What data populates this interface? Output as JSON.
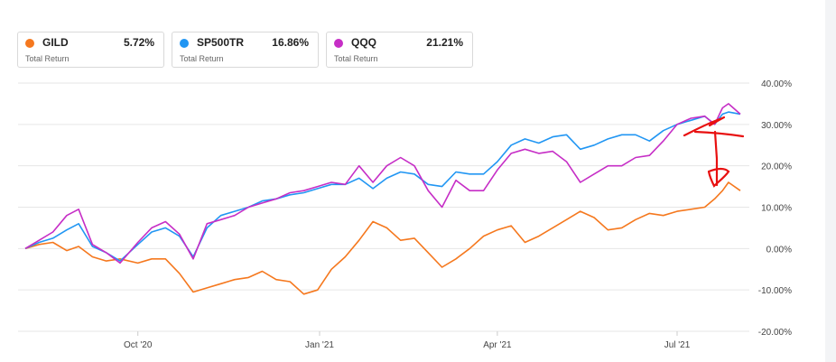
{
  "legend": [
    {
      "ticker": "GILD",
      "value": "5.72%",
      "sub": "Total Return",
      "color": "#f5781e"
    },
    {
      "ticker": "SP500TR",
      "value": "16.86%",
      "sub": "Total Return",
      "color": "#2196f3"
    },
    {
      "ticker": "QQQ",
      "value": "21.21%",
      "sub": "Total Return",
      "color": "#c62ec6"
    }
  ],
  "chart_data": {
    "type": "line",
    "y_ticks": [
      "40.00%",
      "30.00%",
      "20.00%",
      "10.00%",
      "0.00%",
      "-10.00%",
      "-20.00%"
    ],
    "y_tick_values": [
      40,
      30,
      20,
      10,
      0,
      -10,
      -20
    ],
    "ylim": [
      -20,
      40
    ],
    "x_ticks": [
      "Oct '20",
      "Jan '21",
      "Apr '21",
      "Jul '21"
    ],
    "x_tick_dates": [
      "2020-10-01",
      "2021-01-01",
      "2021-04-01",
      "2021-07-01"
    ],
    "xlim": [
      "2020-08-05",
      "2021-08-02"
    ],
    "grid": true,
    "series": [
      {
        "name": "GILD",
        "color": "#f5781e",
        "points": [
          [
            "2020-08-05",
            0
          ],
          [
            "2020-08-12",
            1
          ],
          [
            "2020-08-19",
            1.5
          ],
          [
            "2020-08-26",
            -0.5
          ],
          [
            "2020-09-01",
            0.5
          ],
          [
            "2020-09-08",
            -2
          ],
          [
            "2020-09-15",
            -3
          ],
          [
            "2020-09-22",
            -2.5
          ],
          [
            "2020-10-01",
            -3.5
          ],
          [
            "2020-10-08",
            -2.5
          ],
          [
            "2020-10-15",
            -2.5
          ],
          [
            "2020-10-22",
            -6
          ],
          [
            "2020-10-29",
            -10.5
          ],
          [
            "2020-11-05",
            -9.5
          ],
          [
            "2020-11-12",
            -8.5
          ],
          [
            "2020-11-19",
            -7.5
          ],
          [
            "2020-11-26",
            -7
          ],
          [
            "2020-12-03",
            -5.5
          ],
          [
            "2020-12-10",
            -7.5
          ],
          [
            "2020-12-17",
            -8
          ],
          [
            "2020-12-24",
            -11
          ],
          [
            "2020-12-31",
            -10
          ],
          [
            "2021-01-07",
            -5
          ],
          [
            "2021-01-14",
            -2
          ],
          [
            "2021-01-21",
            2
          ],
          [
            "2021-01-28",
            6.5
          ],
          [
            "2021-02-04",
            5
          ],
          [
            "2021-02-11",
            2
          ],
          [
            "2021-02-18",
            2.5
          ],
          [
            "2021-02-25",
            -1
          ],
          [
            "2021-03-04",
            -4.5
          ],
          [
            "2021-03-11",
            -2.5
          ],
          [
            "2021-03-18",
            0
          ],
          [
            "2021-03-25",
            3
          ],
          [
            "2021-04-01",
            4.5
          ],
          [
            "2021-04-08",
            5.5
          ],
          [
            "2021-04-15",
            1.5
          ],
          [
            "2021-04-22",
            3
          ],
          [
            "2021-04-29",
            5
          ],
          [
            "2021-05-06",
            7
          ],
          [
            "2021-05-13",
            9
          ],
          [
            "2021-05-20",
            7.5
          ],
          [
            "2021-05-27",
            4.5
          ],
          [
            "2021-06-03",
            5
          ],
          [
            "2021-06-10",
            7
          ],
          [
            "2021-06-17",
            8.5
          ],
          [
            "2021-06-24",
            8
          ],
          [
            "2021-07-01",
            9
          ],
          [
            "2021-07-08",
            9.5
          ],
          [
            "2021-07-15",
            10
          ],
          [
            "2021-07-20",
            12
          ],
          [
            "2021-07-24",
            14
          ],
          [
            "2021-07-27",
            16
          ],
          [
            "2021-08-02",
            14
          ]
        ]
      },
      {
        "name": "SP500TR",
        "color": "#2196f3",
        "points": [
          [
            "2020-08-05",
            0
          ],
          [
            "2020-08-12",
            1.5
          ],
          [
            "2020-08-19",
            2.5
          ],
          [
            "2020-08-26",
            4.5
          ],
          [
            "2020-09-01",
            6
          ],
          [
            "2020-09-08",
            0.5
          ],
          [
            "2020-09-15",
            -1
          ],
          [
            "2020-09-22",
            -3
          ],
          [
            "2020-10-01",
            1
          ],
          [
            "2020-10-08",
            4
          ],
          [
            "2020-10-15",
            5
          ],
          [
            "2020-10-22",
            3
          ],
          [
            "2020-10-29",
            -2
          ],
          [
            "2020-11-05",
            5
          ],
          [
            "2020-11-12",
            8
          ],
          [
            "2020-11-19",
            9
          ],
          [
            "2020-11-26",
            10
          ],
          [
            "2020-12-03",
            11.5
          ],
          [
            "2020-12-10",
            12
          ],
          [
            "2020-12-17",
            13
          ],
          [
            "2020-12-24",
            13.5
          ],
          [
            "2020-12-31",
            14.5
          ],
          [
            "2021-01-07",
            15.5
          ],
          [
            "2021-01-14",
            15.5
          ],
          [
            "2021-01-21",
            17
          ],
          [
            "2021-01-28",
            14.5
          ],
          [
            "2021-02-04",
            17
          ],
          [
            "2021-02-11",
            18.5
          ],
          [
            "2021-02-18",
            18
          ],
          [
            "2021-02-25",
            15.5
          ],
          [
            "2021-03-04",
            15
          ],
          [
            "2021-03-11",
            18.5
          ],
          [
            "2021-03-18",
            18
          ],
          [
            "2021-03-25",
            18
          ],
          [
            "2021-04-01",
            21
          ],
          [
            "2021-04-08",
            25
          ],
          [
            "2021-04-15",
            26.5
          ],
          [
            "2021-04-22",
            25.5
          ],
          [
            "2021-04-29",
            27
          ],
          [
            "2021-05-06",
            27.5
          ],
          [
            "2021-05-13",
            24
          ],
          [
            "2021-05-20",
            25
          ],
          [
            "2021-05-27",
            26.5
          ],
          [
            "2021-06-03",
            27.5
          ],
          [
            "2021-06-10",
            27.5
          ],
          [
            "2021-06-17",
            26
          ],
          [
            "2021-06-24",
            28.5
          ],
          [
            "2021-07-01",
            30
          ],
          [
            "2021-07-08",
            31
          ],
          [
            "2021-07-15",
            32
          ],
          [
            "2021-07-20",
            30
          ],
          [
            "2021-07-24",
            32.5
          ],
          [
            "2021-07-27",
            33
          ],
          [
            "2021-08-02",
            32.5
          ]
        ]
      },
      {
        "name": "QQQ",
        "color": "#c62ec6",
        "points": [
          [
            "2020-08-05",
            0
          ],
          [
            "2020-08-12",
            2
          ],
          [
            "2020-08-19",
            4
          ],
          [
            "2020-08-26",
            8
          ],
          [
            "2020-09-01",
            9.5
          ],
          [
            "2020-09-08",
            1
          ],
          [
            "2020-09-15",
            -1
          ],
          [
            "2020-09-22",
            -3.5
          ],
          [
            "2020-10-01",
            1.5
          ],
          [
            "2020-10-08",
            5
          ],
          [
            "2020-10-15",
            6.5
          ],
          [
            "2020-10-22",
            3.5
          ],
          [
            "2020-10-29",
            -2.5
          ],
          [
            "2020-11-05",
            6
          ],
          [
            "2020-11-12",
            7
          ],
          [
            "2020-11-19",
            8
          ],
          [
            "2020-11-26",
            10
          ],
          [
            "2020-12-03",
            11
          ],
          [
            "2020-12-10",
            12
          ],
          [
            "2020-12-17",
            13.5
          ],
          [
            "2020-12-24",
            14
          ],
          [
            "2020-12-31",
            15
          ],
          [
            "2021-01-07",
            16
          ],
          [
            "2021-01-14",
            15.5
          ],
          [
            "2021-01-21",
            20
          ],
          [
            "2021-01-28",
            16
          ],
          [
            "2021-02-04",
            20
          ],
          [
            "2021-02-11",
            22
          ],
          [
            "2021-02-18",
            20
          ],
          [
            "2021-02-25",
            14
          ],
          [
            "2021-03-04",
            10
          ],
          [
            "2021-03-11",
            16.5
          ],
          [
            "2021-03-18",
            14
          ],
          [
            "2021-03-25",
            14
          ],
          [
            "2021-04-01",
            19
          ],
          [
            "2021-04-08",
            23
          ],
          [
            "2021-04-15",
            24
          ],
          [
            "2021-04-22",
            23
          ],
          [
            "2021-04-29",
            23.5
          ],
          [
            "2021-05-06",
            21
          ],
          [
            "2021-05-13",
            16
          ],
          [
            "2021-05-20",
            18
          ],
          [
            "2021-05-27",
            20
          ],
          [
            "2021-06-03",
            20
          ],
          [
            "2021-06-10",
            22
          ],
          [
            "2021-06-17",
            22.5
          ],
          [
            "2021-06-24",
            26
          ],
          [
            "2021-07-01",
            30
          ],
          [
            "2021-07-08",
            31.5
          ],
          [
            "2021-07-15",
            32
          ],
          [
            "2021-07-20",
            30
          ],
          [
            "2021-07-24",
            34
          ],
          [
            "2021-07-27",
            35
          ],
          [
            "2021-08-02",
            32.5
          ]
        ]
      }
    ]
  },
  "annotation": {
    "color": "#e81010"
  }
}
